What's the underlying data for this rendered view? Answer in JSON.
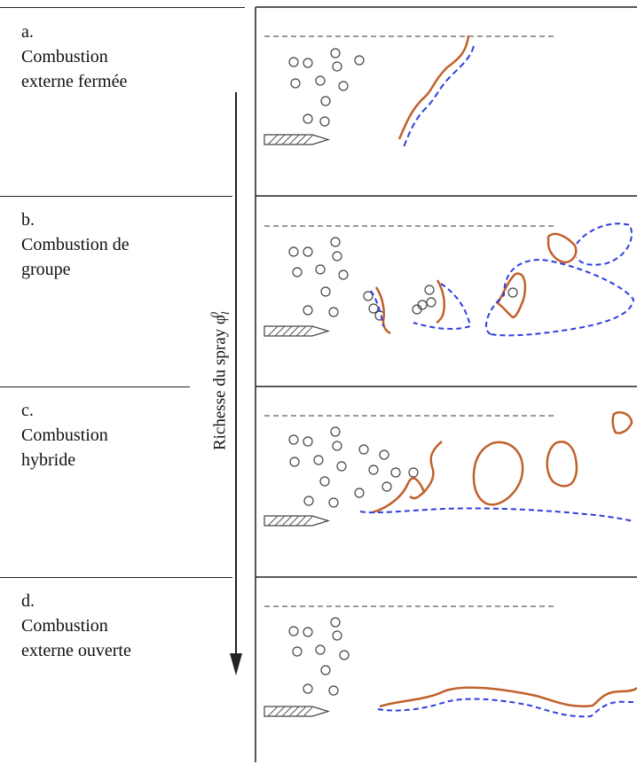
{
  "rows": [
    {
      "letter": "a.",
      "line1": "Combustion",
      "line2": "externe fermée"
    },
    {
      "letter": "b.",
      "line1": "Combustion de",
      "line2": "groupe"
    },
    {
      "letter": "c.",
      "line1": "Combustion",
      "line2": "hybride"
    },
    {
      "letter": "d.",
      "line1": "Combustion",
      "line2": "externe ouverte"
    }
  ],
  "axis": {
    "label": "Richesse du spray φ",
    "subscript": "l",
    "superscript": "0"
  },
  "colors": {
    "flame": "#c0612b",
    "dashed_front": "#2f3fe0",
    "spray_boundary": "#999999",
    "droplet": "#444444",
    "line": "#222222"
  },
  "icons": {
    "injector": "injector-icon",
    "arrow": "down-arrow-icon"
  }
}
